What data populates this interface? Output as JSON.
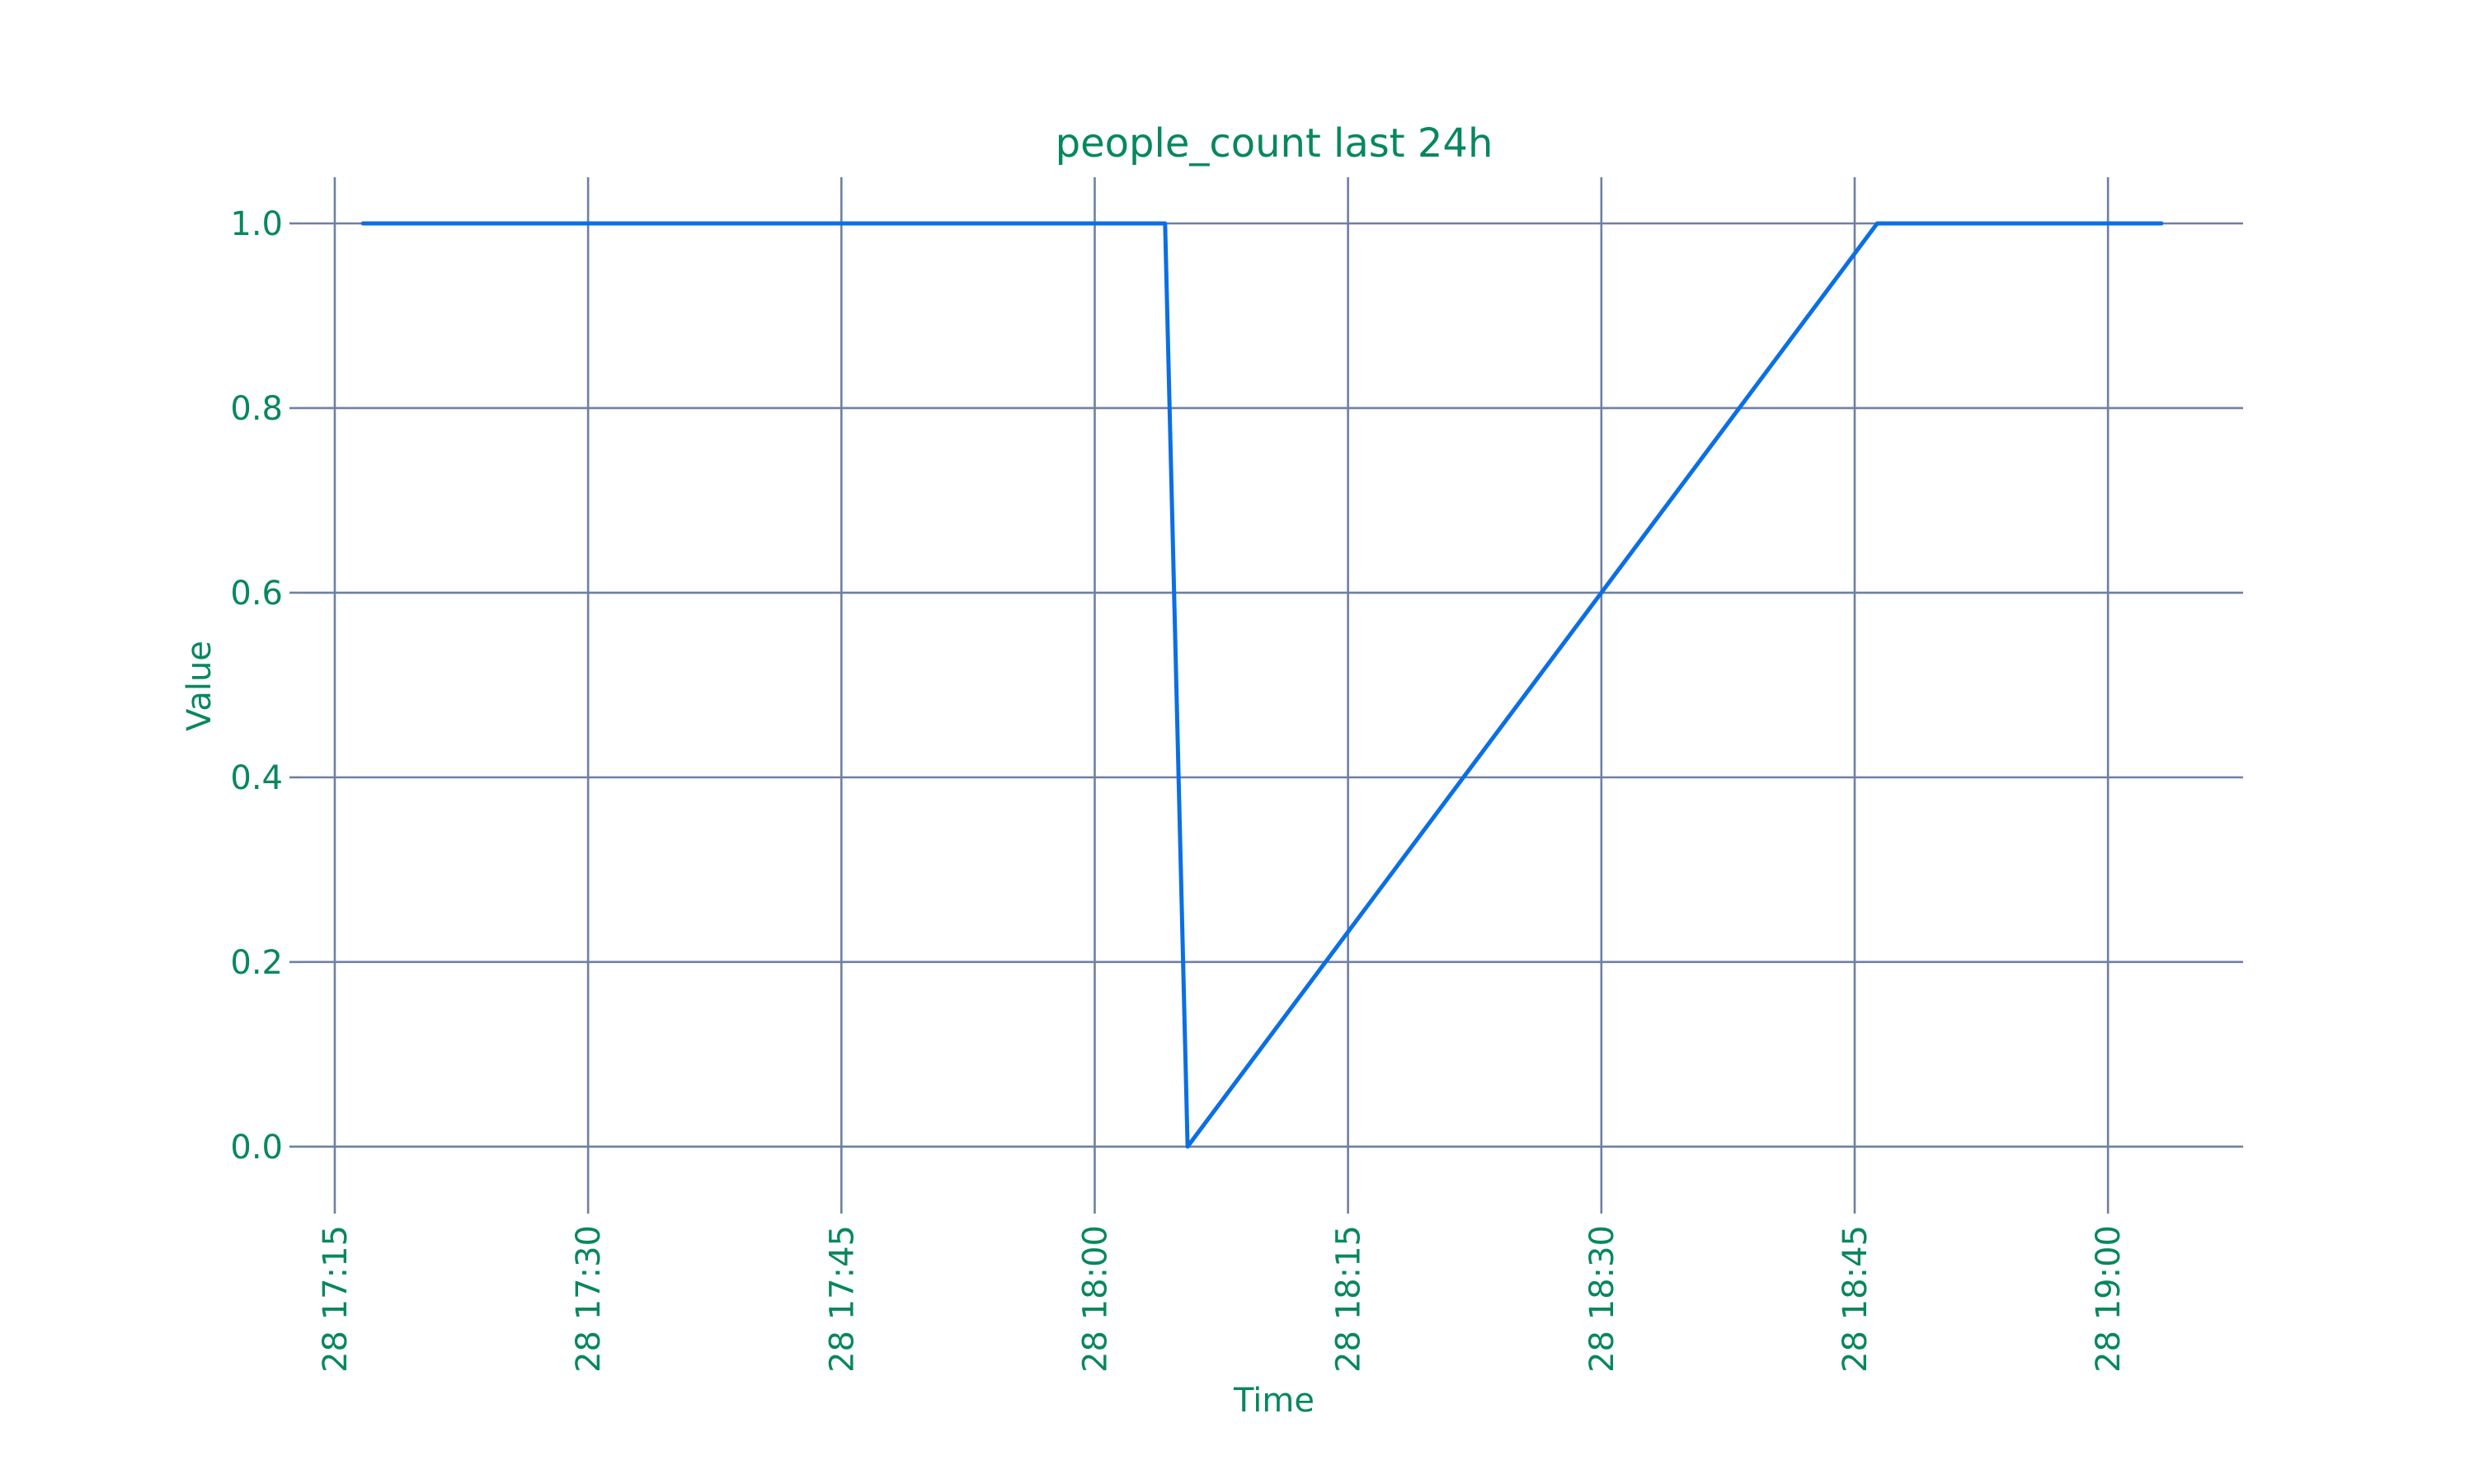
{
  "chart_data": {
    "type": "line",
    "title": "people_count last 24h",
    "xlabel": "Time",
    "ylabel": "Value",
    "x_type": "time",
    "x_format": "DD HH:MM",
    "x_tick_labels": [
      "28 17:15",
      "28 17:30",
      "28 17:45",
      "28 18:00",
      "28 18:15",
      "28 18:30",
      "28 18:45",
      "28 19:00"
    ],
    "y_tick_labels": [
      "0.0",
      "0.2",
      "0.4",
      "0.6",
      "0.8",
      "1.0"
    ],
    "xlim": [
      "28 17:13",
      "28 19:08"
    ],
    "ylim": [
      -0.06,
      1.05
    ],
    "grid": true,
    "series": [
      {
        "color": "#0b6fe4",
        "points": [
          {
            "x": "28 17:16:40",
            "y": 1.0
          },
          {
            "x": "28 18:04:10",
            "y": 1.0
          },
          {
            "x": "28 18:05:30",
            "y": 0.0
          },
          {
            "x": "28 18:46:20",
            "y": 1.0
          },
          {
            "x": "28 19:03:10",
            "y": 1.0
          }
        ]
      }
    ]
  }
}
